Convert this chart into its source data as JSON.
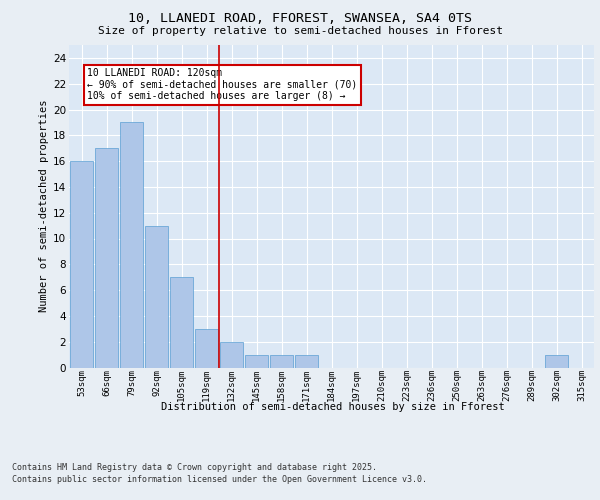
{
  "title1": "10, LLANEDI ROAD, FFOREST, SWANSEA, SA4 0TS",
  "title2": "Size of property relative to semi-detached houses in Fforest",
  "xlabel": "Distribution of semi-detached houses by size in Fforest",
  "ylabel": "Number of semi-detached properties",
  "categories": [
    "53sqm",
    "66sqm",
    "79sqm",
    "92sqm",
    "105sqm",
    "119sqm",
    "132sqm",
    "145sqm",
    "158sqm",
    "171sqm",
    "184sqm",
    "197sqm",
    "210sqm",
    "223sqm",
    "236sqm",
    "250sqm",
    "263sqm",
    "276sqm",
    "289sqm",
    "302sqm",
    "315sqm"
  ],
  "values": [
    16,
    17,
    19,
    11,
    7,
    3,
    2,
    1,
    1,
    1,
    0,
    0,
    0,
    0,
    0,
    0,
    0,
    0,
    0,
    1,
    0
  ],
  "bar_color": "#aec6e8",
  "bar_edge_color": "#5a9fd4",
  "vline_x_idx": 5.5,
  "vline_color": "#cc0000",
  "annotation_title": "10 LLANEDI ROAD: 120sqm",
  "annotation_line1": "← 90% of semi-detached houses are smaller (70)",
  "annotation_line2": "10% of semi-detached houses are larger (8) →",
  "annotation_box_color": "#cc0000",
  "ylim": [
    0,
    25
  ],
  "yticks": [
    0,
    2,
    4,
    6,
    8,
    10,
    12,
    14,
    16,
    18,
    20,
    22,
    24
  ],
  "bg_color": "#e8eef4",
  "plot_bg_color": "#dce8f5",
  "footer_line1": "Contains HM Land Registry data © Crown copyright and database right 2025.",
  "footer_line2": "Contains public sector information licensed under the Open Government Licence v3.0."
}
